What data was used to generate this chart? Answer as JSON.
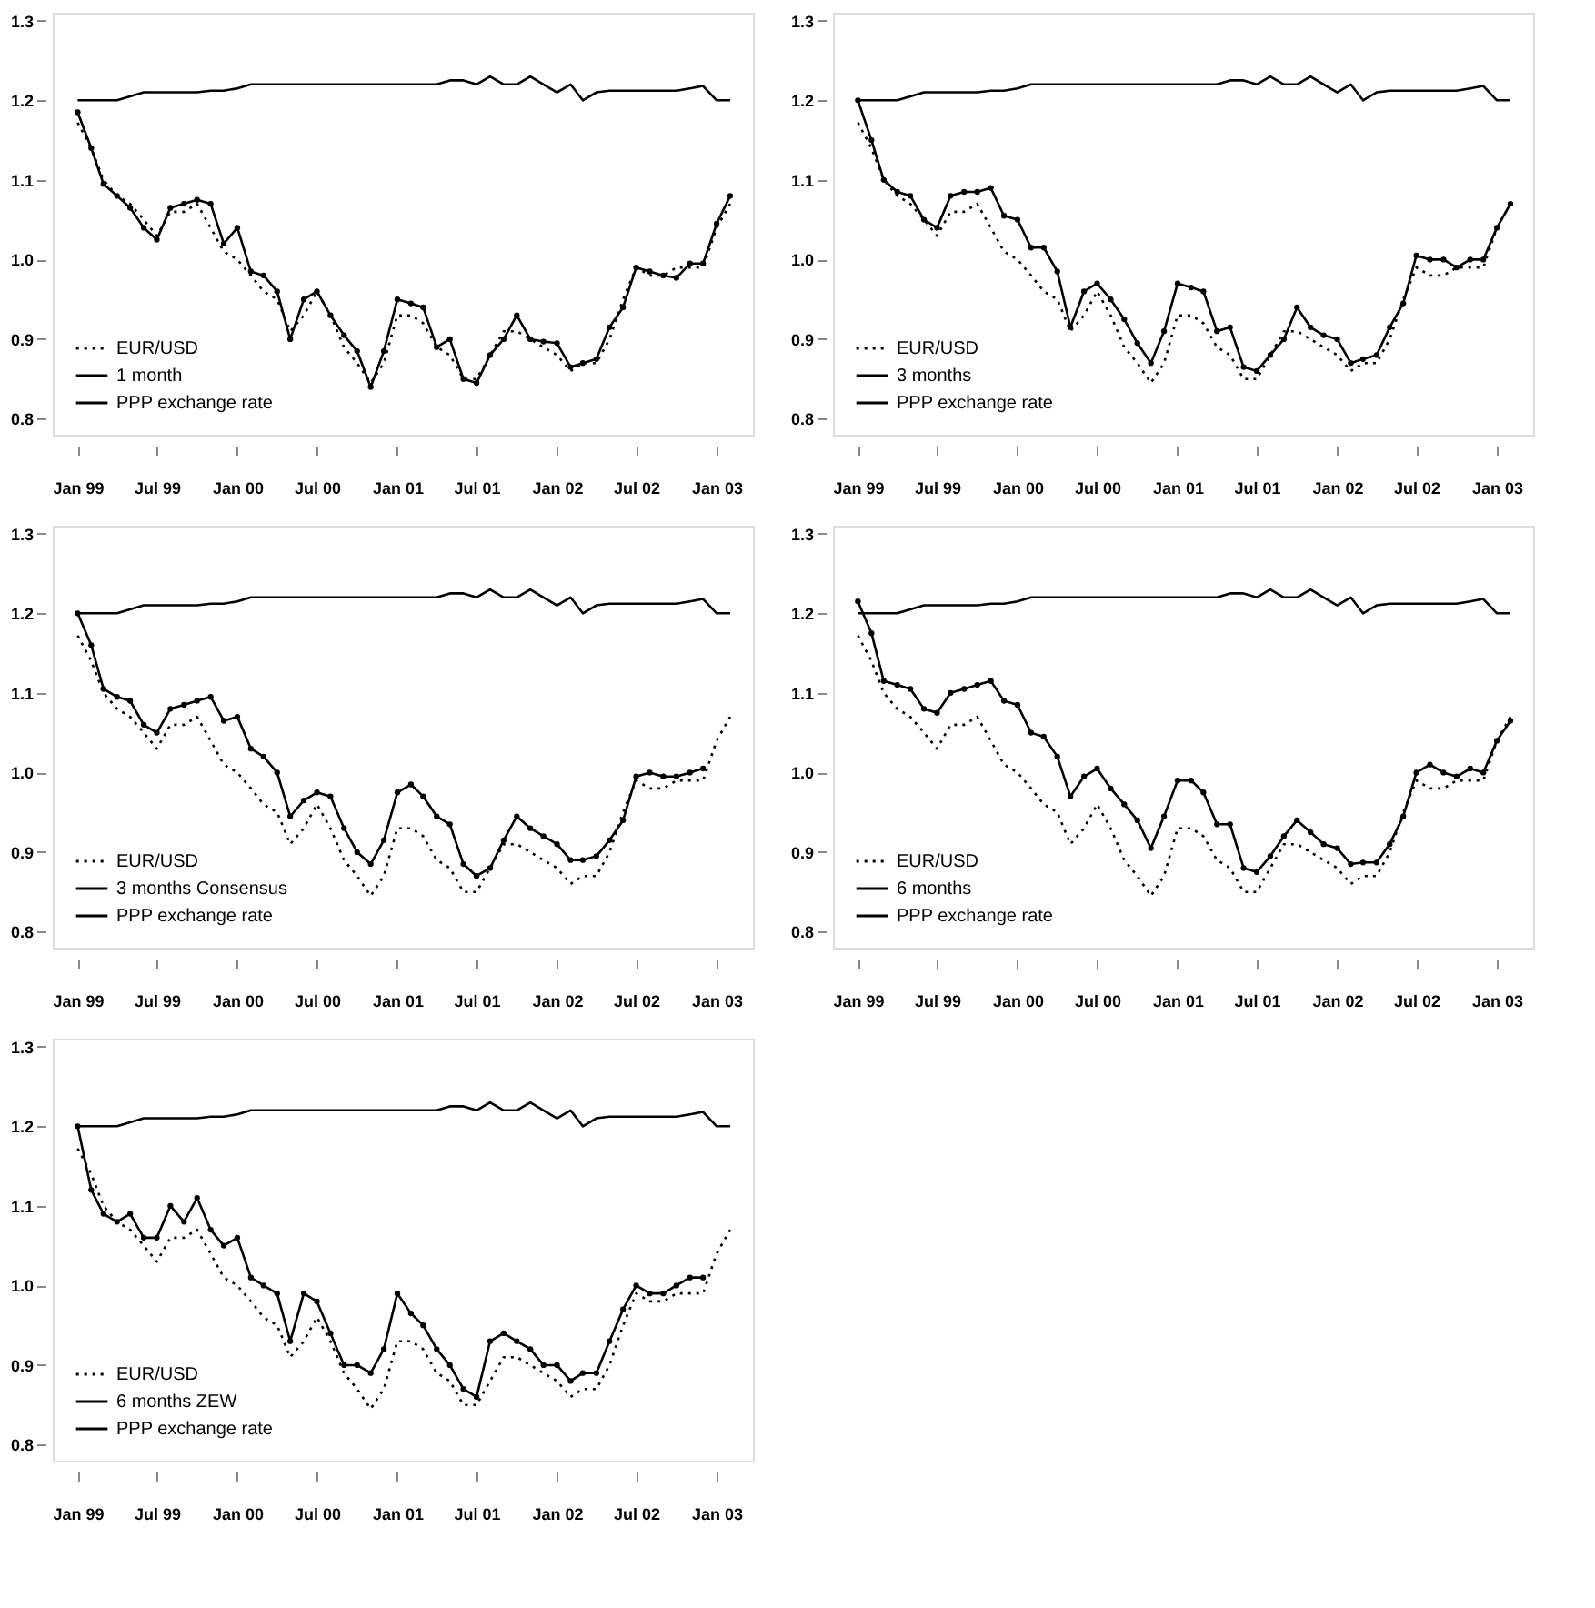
{
  "chart_data": [
    {
      "type": "line",
      "legend": "bottom left",
      "grid": false,
      "x": [
        "1999-01",
        "1999-02",
        "1999-03",
        "1999-04",
        "1999-05",
        "1999-06",
        "1999-07",
        "1999-08",
        "1999-09",
        "1999-10",
        "1999-11",
        "1999-12",
        "2000-01",
        "2000-02",
        "2000-03",
        "2000-04",
        "2000-05",
        "2000-06",
        "2000-07",
        "2000-08",
        "2000-09",
        "2000-10",
        "2000-11",
        "2000-12",
        "2001-01",
        "2001-02",
        "2001-03",
        "2001-04",
        "2001-05",
        "2001-06",
        "2001-07",
        "2001-08",
        "2001-09",
        "2001-10",
        "2001-11",
        "2001-12",
        "2002-01",
        "2002-02",
        "2002-03",
        "2002-04",
        "2002-05",
        "2002-06",
        "2002-07",
        "2002-08",
        "2002-09",
        "2002-10",
        "2002-11",
        "2002-12",
        "2003-01",
        "2003-02"
      ],
      "xlim": [
        "1998-11-05",
        "2003-03-25"
      ],
      "xticks": [
        {
          "value": "1999-01",
          "label": "Jan 99"
        },
        {
          "value": "1999-07",
          "label": "Jul 99"
        },
        {
          "value": "2000-01",
          "label": "Jan 00"
        },
        {
          "value": "2000-07",
          "label": "Jul 00"
        },
        {
          "value": "2001-01",
          "label": "Jan 01"
        },
        {
          "value": "2001-07",
          "label": "Jul 01"
        },
        {
          "value": "2002-01",
          "label": "Jan 02"
        },
        {
          "value": "2002-07",
          "label": "Jul 02"
        },
        {
          "value": "2003-01",
          "label": "Jan 03"
        }
      ],
      "ylim": [
        0.78,
        1.31
      ],
      "yticks": [
        {
          "value": 0.8,
          "label": "0.8"
        },
        {
          "value": 0.9,
          "label": "0.9"
        },
        {
          "value": 1.0,
          "label": "1.0"
        },
        {
          "value": 1.1,
          "label": "1.1"
        },
        {
          "value": 1.2,
          "label": "1.2"
        },
        {
          "value": 1.3,
          "label": "1.3"
        }
      ],
      "series": [
        {
          "name": "EUR/USD",
          "color": "#000000",
          "line_style": "dotted",
          "marker": "none",
          "values": [
            1.172,
            1.14,
            1.1,
            1.08,
            1.07,
            1.05,
            1.03,
            1.06,
            1.06,
            1.07,
            1.04,
            1.01,
            1.0,
            0.98,
            0.96,
            0.95,
            0.91,
            0.93,
            0.96,
            0.93,
            0.89,
            0.87,
            0.845,
            0.87,
            0.93,
            0.93,
            0.92,
            0.89,
            0.88,
            0.85,
            0.85,
            0.88,
            0.91,
            0.91,
            0.9,
            0.89,
            0.88,
            0.86,
            0.87,
            0.87,
            0.9,
            0.95,
            0.99,
            0.98,
            0.98,
            0.99,
            0.99,
            0.99,
            1.04,
            1.07
          ]
        },
        {
          "name": "1 month",
          "color": "#000000",
          "line_style": "solid",
          "marker": "circle",
          "values": [
            1.185,
            1.14,
            1.095,
            1.08,
            1.065,
            1.04,
            1.025,
            1.065,
            1.07,
            1.075,
            1.07,
            1.02,
            1.04,
            0.985,
            0.98,
            0.96,
            0.9,
            0.95,
            0.96,
            0.93,
            0.905,
            0.885,
            0.84,
            0.885,
            0.95,
            0.945,
            0.94,
            0.89,
            0.9,
            0.85,
            0.845,
            0.88,
            0.9,
            0.93,
            0.9,
            0.897,
            0.895,
            0.865,
            0.87,
            0.875,
            0.915,
            0.94,
            0.99,
            0.985,
            0.98,
            0.977,
            0.995,
            0.995,
            1.045,
            1.08
          ]
        },
        {
          "name": "PPP exchange rate",
          "color": "#000000",
          "line_style": "solid",
          "marker": "none",
          "values": [
            1.2,
            1.2,
            1.2,
            1.2,
            1.205,
            1.21,
            1.21,
            1.21,
            1.21,
            1.21,
            1.212,
            1.212,
            1.215,
            1.22,
            1.22,
            1.22,
            1.22,
            1.22,
            1.22,
            1.22,
            1.22,
            1.22,
            1.22,
            1.22,
            1.22,
            1.22,
            1.22,
            1.22,
            1.225,
            1.225,
            1.22,
            1.23,
            1.22,
            1.22,
            1.23,
            1.22,
            1.21,
            1.22,
            1.2,
            1.21,
            1.212,
            1.212,
            1.212,
            1.212,
            1.212,
            1.212,
            1.215,
            1.218,
            1.2,
            1.2
          ]
        }
      ]
    },
    {
      "type": "line",
      "legend": "bottom left",
      "grid": false,
      "x": [
        "1999-01",
        "1999-02",
        "1999-03",
        "1999-04",
        "1999-05",
        "1999-06",
        "1999-07",
        "1999-08",
        "1999-09",
        "1999-10",
        "1999-11",
        "1999-12",
        "2000-01",
        "2000-02",
        "2000-03",
        "2000-04",
        "2000-05",
        "2000-06",
        "2000-07",
        "2000-08",
        "2000-09",
        "2000-10",
        "2000-11",
        "2000-12",
        "2001-01",
        "2001-02",
        "2001-03",
        "2001-04",
        "2001-05",
        "2001-06",
        "2001-07",
        "2001-08",
        "2001-09",
        "2001-10",
        "2001-11",
        "2001-12",
        "2002-01",
        "2002-02",
        "2002-03",
        "2002-04",
        "2002-05",
        "2002-06",
        "2002-07",
        "2002-08",
        "2002-09",
        "2002-10",
        "2002-11",
        "2002-12",
        "2003-01",
        "2003-02"
      ],
      "xlim": [
        "1998-11-05",
        "2003-03-25"
      ],
      "xticks": [
        {
          "value": "1999-01",
          "label": "Jan 99"
        },
        {
          "value": "1999-07",
          "label": "Jul 99"
        },
        {
          "value": "2000-01",
          "label": "Jan 00"
        },
        {
          "value": "2000-07",
          "label": "Jul 00"
        },
        {
          "value": "2001-01",
          "label": "Jan 01"
        },
        {
          "value": "2001-07",
          "label": "Jul 01"
        },
        {
          "value": "2002-01",
          "label": "Jan 02"
        },
        {
          "value": "2002-07",
          "label": "Jul 02"
        },
        {
          "value": "2003-01",
          "label": "Jan 03"
        }
      ],
      "ylim": [
        0.78,
        1.31
      ],
      "yticks": [
        {
          "value": 0.8,
          "label": "0.8"
        },
        {
          "value": 0.9,
          "label": "0.9"
        },
        {
          "value": 1.0,
          "label": "1.0"
        },
        {
          "value": 1.1,
          "label": "1.1"
        },
        {
          "value": 1.2,
          "label": "1.2"
        },
        {
          "value": 1.3,
          "label": "1.3"
        }
      ],
      "series": [
        {
          "name": "EUR/USD",
          "color": "#000000",
          "line_style": "dotted",
          "marker": "none",
          "values": [
            1.172,
            1.14,
            1.1,
            1.08,
            1.07,
            1.05,
            1.03,
            1.06,
            1.06,
            1.07,
            1.04,
            1.01,
            1.0,
            0.98,
            0.96,
            0.95,
            0.91,
            0.93,
            0.96,
            0.93,
            0.89,
            0.87,
            0.845,
            0.87,
            0.93,
            0.93,
            0.92,
            0.89,
            0.88,
            0.85,
            0.85,
            0.88,
            0.91,
            0.91,
            0.9,
            0.89,
            0.88,
            0.86,
            0.87,
            0.87,
            0.9,
            0.95,
            0.99,
            0.98,
            0.98,
            0.99,
            0.99,
            0.99,
            1.04,
            1.07
          ]
        },
        {
          "name": "3 months",
          "color": "#000000",
          "line_style": "solid",
          "marker": "circle",
          "values": [
            1.2,
            1.15,
            1.1,
            1.085,
            1.08,
            1.05,
            1.04,
            1.08,
            1.085,
            1.085,
            1.09,
            1.055,
            1.05,
            1.015,
            1.015,
            0.985,
            0.915,
            0.96,
            0.97,
            0.95,
            0.925,
            0.895,
            0.87,
            0.91,
            0.97,
            0.965,
            0.96,
            0.91,
            0.915,
            0.865,
            0.86,
            0.88,
            0.9,
            0.94,
            0.915,
            0.905,
            0.9,
            0.87,
            0.875,
            0.88,
            0.915,
            0.945,
            1.005,
            1.0,
            1.0,
            0.99,
            1.0,
            1.0,
            1.04,
            1.07
          ]
        },
        {
          "name": "PPP exchange rate",
          "color": "#000000",
          "line_style": "solid",
          "marker": "none",
          "values": [
            1.2,
            1.2,
            1.2,
            1.2,
            1.205,
            1.21,
            1.21,
            1.21,
            1.21,
            1.21,
            1.212,
            1.212,
            1.215,
            1.22,
            1.22,
            1.22,
            1.22,
            1.22,
            1.22,
            1.22,
            1.22,
            1.22,
            1.22,
            1.22,
            1.22,
            1.22,
            1.22,
            1.22,
            1.225,
            1.225,
            1.22,
            1.23,
            1.22,
            1.22,
            1.23,
            1.22,
            1.21,
            1.22,
            1.2,
            1.21,
            1.212,
            1.212,
            1.212,
            1.212,
            1.212,
            1.212,
            1.215,
            1.218,
            1.2,
            1.2
          ]
        }
      ]
    },
    {
      "type": "line",
      "legend": "bottom left",
      "grid": false,
      "x": [
        "1999-01",
        "1999-02",
        "1999-03",
        "1999-04",
        "1999-05",
        "1999-06",
        "1999-07",
        "1999-08",
        "1999-09",
        "1999-10",
        "1999-11",
        "1999-12",
        "2000-01",
        "2000-02",
        "2000-03",
        "2000-04",
        "2000-05",
        "2000-06",
        "2000-07",
        "2000-08",
        "2000-09",
        "2000-10",
        "2000-11",
        "2000-12",
        "2001-01",
        "2001-02",
        "2001-03",
        "2001-04",
        "2001-05",
        "2001-06",
        "2001-07",
        "2001-08",
        "2001-09",
        "2001-10",
        "2001-11",
        "2001-12",
        "2002-01",
        "2002-02",
        "2002-03",
        "2002-04",
        "2002-05",
        "2002-06",
        "2002-07",
        "2002-08",
        "2002-09",
        "2002-10",
        "2002-11",
        "2002-12",
        "2003-01",
        "2003-02"
      ],
      "xlim": [
        "1998-11-05",
        "2003-03-25"
      ],
      "xticks": [
        {
          "value": "1999-01",
          "label": "Jan 99"
        },
        {
          "value": "1999-07",
          "label": "Jul 99"
        },
        {
          "value": "2000-01",
          "label": "Jan 00"
        },
        {
          "value": "2000-07",
          "label": "Jul 00"
        },
        {
          "value": "2001-01",
          "label": "Jan 01"
        },
        {
          "value": "2001-07",
          "label": "Jul 01"
        },
        {
          "value": "2002-01",
          "label": "Jan 02"
        },
        {
          "value": "2002-07",
          "label": "Jul 02"
        },
        {
          "value": "2003-01",
          "label": "Jan 03"
        }
      ],
      "ylim": [
        0.78,
        1.31
      ],
      "yticks": [
        {
          "value": 0.8,
          "label": "0.8"
        },
        {
          "value": 0.9,
          "label": "0.9"
        },
        {
          "value": 1.0,
          "label": "1.0"
        },
        {
          "value": 1.1,
          "label": "1.1"
        },
        {
          "value": 1.2,
          "label": "1.2"
        },
        {
          "value": 1.3,
          "label": "1.3"
        }
      ],
      "series": [
        {
          "name": "EUR/USD",
          "color": "#000000",
          "line_style": "dotted",
          "marker": "none",
          "values": [
            1.172,
            1.14,
            1.1,
            1.08,
            1.07,
            1.05,
            1.03,
            1.06,
            1.06,
            1.07,
            1.04,
            1.01,
            1.0,
            0.98,
            0.96,
            0.95,
            0.91,
            0.93,
            0.96,
            0.93,
            0.89,
            0.87,
            0.845,
            0.87,
            0.93,
            0.93,
            0.92,
            0.89,
            0.88,
            0.85,
            0.85,
            0.88,
            0.91,
            0.91,
            0.9,
            0.89,
            0.88,
            0.86,
            0.87,
            0.87,
            0.9,
            0.95,
            0.99,
            0.98,
            0.98,
            0.99,
            0.99,
            0.99,
            1.04,
            1.07
          ]
        },
        {
          "name": "3 months Consensus",
          "color": "#000000",
          "line_style": "solid",
          "marker": "circle",
          "values": [
            1.2,
            1.16,
            1.105,
            1.095,
            1.09,
            1.06,
            1.05,
            1.08,
            1.085,
            1.09,
            1.095,
            1.065,
            1.07,
            1.03,
            1.02,
            1.0,
            0.945,
            0.965,
            0.975,
            0.97,
            0.93,
            0.9,
            0.885,
            0.915,
            0.975,
            0.985,
            0.97,
            0.945,
            0.935,
            0.885,
            0.87,
            0.88,
            0.915,
            0.945,
            0.93,
            0.92,
            0.91,
            0.89,
            0.89,
            0.895,
            0.915,
            0.94,
            0.995,
            1.0,
            0.995,
            0.995,
            1.0,
            1.005,
            null,
            null
          ]
        },
        {
          "name": "PPP exchange rate",
          "color": "#000000",
          "line_style": "solid",
          "marker": "none",
          "values": [
            1.2,
            1.2,
            1.2,
            1.2,
            1.205,
            1.21,
            1.21,
            1.21,
            1.21,
            1.21,
            1.212,
            1.212,
            1.215,
            1.22,
            1.22,
            1.22,
            1.22,
            1.22,
            1.22,
            1.22,
            1.22,
            1.22,
            1.22,
            1.22,
            1.22,
            1.22,
            1.22,
            1.22,
            1.225,
            1.225,
            1.22,
            1.23,
            1.22,
            1.22,
            1.23,
            1.22,
            1.21,
            1.22,
            1.2,
            1.21,
            1.212,
            1.212,
            1.212,
            1.212,
            1.212,
            1.212,
            1.215,
            1.218,
            1.2,
            1.2
          ]
        }
      ]
    },
    {
      "type": "line",
      "legend": "bottom left",
      "grid": false,
      "x": [
        "1999-01",
        "1999-02",
        "1999-03",
        "1999-04",
        "1999-05",
        "1999-06",
        "1999-07",
        "1999-08",
        "1999-09",
        "1999-10",
        "1999-11",
        "1999-12",
        "2000-01",
        "2000-02",
        "2000-03",
        "2000-04",
        "2000-05",
        "2000-06",
        "2000-07",
        "2000-08",
        "2000-09",
        "2000-10",
        "2000-11",
        "2000-12",
        "2001-01",
        "2001-02",
        "2001-03",
        "2001-04",
        "2001-05",
        "2001-06",
        "2001-07",
        "2001-08",
        "2001-09",
        "2001-10",
        "2001-11",
        "2001-12",
        "2002-01",
        "2002-02",
        "2002-03",
        "2002-04",
        "2002-05",
        "2002-06",
        "2002-07",
        "2002-08",
        "2002-09",
        "2002-10",
        "2002-11",
        "2002-12",
        "2003-01",
        "2003-02"
      ],
      "xlim": [
        "1998-11-05",
        "2003-03-25"
      ],
      "xticks": [
        {
          "value": "1999-01",
          "label": "Jan 99"
        },
        {
          "value": "1999-07",
          "label": "Jul 99"
        },
        {
          "value": "2000-01",
          "label": "Jan 00"
        },
        {
          "value": "2000-07",
          "label": "Jul 00"
        },
        {
          "value": "2001-01",
          "label": "Jan 01"
        },
        {
          "value": "2001-07",
          "label": "Jul 01"
        },
        {
          "value": "2002-01",
          "label": "Jan 02"
        },
        {
          "value": "2002-07",
          "label": "Jul 02"
        },
        {
          "value": "2003-01",
          "label": "Jan 03"
        }
      ],
      "ylim": [
        0.78,
        1.31
      ],
      "yticks": [
        {
          "value": 0.8,
          "label": "0.8"
        },
        {
          "value": 0.9,
          "label": "0.9"
        },
        {
          "value": 1.0,
          "label": "1.0"
        },
        {
          "value": 1.1,
          "label": "1.1"
        },
        {
          "value": 1.2,
          "label": "1.2"
        },
        {
          "value": 1.3,
          "label": "1.3"
        }
      ],
      "series": [
        {
          "name": "EUR/USD",
          "color": "#000000",
          "line_style": "dotted",
          "marker": "none",
          "values": [
            1.172,
            1.14,
            1.1,
            1.08,
            1.07,
            1.05,
            1.03,
            1.06,
            1.06,
            1.07,
            1.04,
            1.01,
            1.0,
            0.98,
            0.96,
            0.95,
            0.91,
            0.93,
            0.96,
            0.93,
            0.89,
            0.87,
            0.845,
            0.87,
            0.93,
            0.93,
            0.92,
            0.89,
            0.88,
            0.85,
            0.85,
            0.88,
            0.91,
            0.91,
            0.9,
            0.89,
            0.88,
            0.86,
            0.87,
            0.87,
            0.9,
            0.95,
            0.99,
            0.98,
            0.98,
            0.99,
            0.99,
            0.99,
            1.04,
            1.07
          ]
        },
        {
          "name": "6 months",
          "color": "#000000",
          "line_style": "solid",
          "marker": "circle",
          "values": [
            1.215,
            1.175,
            1.115,
            1.11,
            1.105,
            1.08,
            1.075,
            1.1,
            1.105,
            1.11,
            1.115,
            1.09,
            1.085,
            1.05,
            1.045,
            1.02,
            0.97,
            0.995,
            1.005,
            0.98,
            0.96,
            0.94,
            0.905,
            0.945,
            0.99,
            0.99,
            0.975,
            0.935,
            0.935,
            0.88,
            0.875,
            0.895,
            0.92,
            0.94,
            0.925,
            0.91,
            0.905,
            0.885,
            0.887,
            0.887,
            0.91,
            0.945,
            1.0,
            1.01,
            1.0,
            0.995,
            1.005,
            1.0,
            1.04,
            1.065
          ]
        },
        {
          "name": "PPP exchange rate",
          "color": "#000000",
          "line_style": "solid",
          "marker": "none",
          "values": [
            1.2,
            1.2,
            1.2,
            1.2,
            1.205,
            1.21,
            1.21,
            1.21,
            1.21,
            1.21,
            1.212,
            1.212,
            1.215,
            1.22,
            1.22,
            1.22,
            1.22,
            1.22,
            1.22,
            1.22,
            1.22,
            1.22,
            1.22,
            1.22,
            1.22,
            1.22,
            1.22,
            1.22,
            1.225,
            1.225,
            1.22,
            1.23,
            1.22,
            1.22,
            1.23,
            1.22,
            1.21,
            1.22,
            1.2,
            1.21,
            1.212,
            1.212,
            1.212,
            1.212,
            1.212,
            1.212,
            1.215,
            1.218,
            1.2,
            1.2
          ]
        }
      ]
    },
    {
      "type": "line",
      "legend": "bottom left",
      "grid": false,
      "x": [
        "1999-01",
        "1999-02",
        "1999-03",
        "1999-04",
        "1999-05",
        "1999-06",
        "1999-07",
        "1999-08",
        "1999-09",
        "1999-10",
        "1999-11",
        "1999-12",
        "2000-01",
        "2000-02",
        "2000-03",
        "2000-04",
        "2000-05",
        "2000-06",
        "2000-07",
        "2000-08",
        "2000-09",
        "2000-10",
        "2000-11",
        "2000-12",
        "2001-01",
        "2001-02",
        "2001-03",
        "2001-04",
        "2001-05",
        "2001-06",
        "2001-07",
        "2001-08",
        "2001-09",
        "2001-10",
        "2001-11",
        "2001-12",
        "2002-01",
        "2002-02",
        "2002-03",
        "2002-04",
        "2002-05",
        "2002-06",
        "2002-07",
        "2002-08",
        "2002-09",
        "2002-10",
        "2002-11",
        "2002-12",
        "2003-01",
        "2003-02"
      ],
      "xlim": [
        "1998-11-05",
        "2003-03-25"
      ],
      "xticks": [
        {
          "value": "1999-01",
          "label": "Jan 99"
        },
        {
          "value": "1999-07",
          "label": "Jul 99"
        },
        {
          "value": "2000-01",
          "label": "Jan 00"
        },
        {
          "value": "2000-07",
          "label": "Jul 00"
        },
        {
          "value": "2001-01",
          "label": "Jan 01"
        },
        {
          "value": "2001-07",
          "label": "Jul 01"
        },
        {
          "value": "2002-01",
          "label": "Jan 02"
        },
        {
          "value": "2002-07",
          "label": "Jul 02"
        },
        {
          "value": "2003-01",
          "label": "Jan 03"
        }
      ],
      "ylim": [
        0.78,
        1.31
      ],
      "yticks": [
        {
          "value": 0.8,
          "label": "0.8"
        },
        {
          "value": 0.9,
          "label": "0.9"
        },
        {
          "value": 1.0,
          "label": "1.0"
        },
        {
          "value": 1.1,
          "label": "1.1"
        },
        {
          "value": 1.2,
          "label": "1.2"
        },
        {
          "value": 1.3,
          "label": "1.3"
        }
      ],
      "series": [
        {
          "name": "EUR/USD",
          "color": "#000000",
          "line_style": "dotted",
          "marker": "none",
          "values": [
            1.172,
            1.14,
            1.1,
            1.08,
            1.07,
            1.05,
            1.03,
            1.06,
            1.06,
            1.07,
            1.04,
            1.01,
            1.0,
            0.98,
            0.96,
            0.95,
            0.91,
            0.93,
            0.96,
            0.93,
            0.89,
            0.87,
            0.845,
            0.87,
            0.93,
            0.93,
            0.92,
            0.89,
            0.88,
            0.85,
            0.85,
            0.88,
            0.91,
            0.91,
            0.9,
            0.89,
            0.88,
            0.86,
            0.87,
            0.87,
            0.9,
            0.95,
            0.99,
            0.98,
            0.98,
            0.99,
            0.99,
            0.99,
            1.04,
            1.07
          ]
        },
        {
          "name": "6 months ZEW",
          "color": "#000000",
          "line_style": "solid",
          "marker": "circle",
          "values": [
            1.2,
            1.12,
            1.09,
            1.08,
            1.09,
            1.06,
            1.06,
            1.1,
            1.08,
            1.11,
            1.07,
            1.05,
            1.06,
            1.01,
            1.0,
            0.99,
            0.93,
            0.99,
            0.98,
            0.94,
            0.9,
            0.9,
            0.89,
            0.92,
            0.99,
            0.965,
            0.95,
            0.92,
            0.9,
            0.87,
            0.86,
            0.93,
            0.94,
            0.93,
            0.92,
            0.9,
            0.9,
            0.88,
            0.89,
            0.89,
            0.93,
            0.97,
            1.0,
            0.99,
            0.99,
            1.0,
            1.01,
            1.01,
            null,
            null
          ]
        },
        {
          "name": "PPP exchange rate",
          "color": "#000000",
          "line_style": "solid",
          "marker": "none",
          "values": [
            1.2,
            1.2,
            1.2,
            1.2,
            1.205,
            1.21,
            1.21,
            1.21,
            1.21,
            1.21,
            1.212,
            1.212,
            1.215,
            1.22,
            1.22,
            1.22,
            1.22,
            1.22,
            1.22,
            1.22,
            1.22,
            1.22,
            1.22,
            1.22,
            1.22,
            1.22,
            1.22,
            1.22,
            1.225,
            1.225,
            1.22,
            1.23,
            1.22,
            1.22,
            1.23,
            1.22,
            1.21,
            1.22,
            1.2,
            1.21,
            1.212,
            1.212,
            1.212,
            1.212,
            1.212,
            1.212,
            1.215,
            1.218,
            1.2,
            1.2
          ]
        }
      ]
    }
  ]
}
